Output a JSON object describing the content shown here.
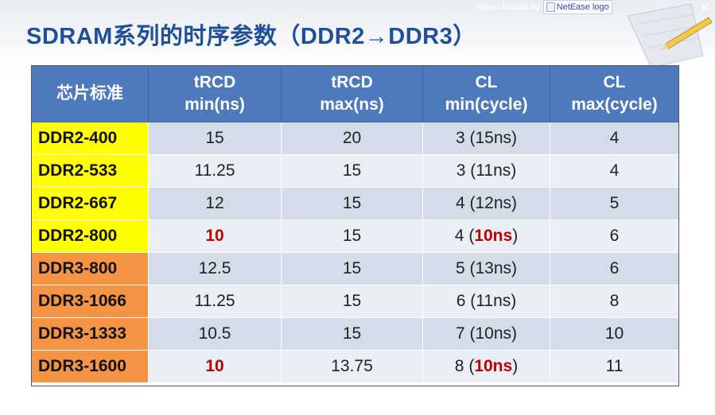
{
  "title": "SDRAM系列的时序参数（DDR2→DDR3）",
  "watermark": {
    "text": "Video hosted by",
    "logo_alt": "NetEase logo"
  },
  "colors": {
    "header_bg": "#4f79bd",
    "ddr2_bg": "#ffff00",
    "ddr3_bg": "#f59445",
    "highlight": "#c00000",
    "title": "#1f4e9a"
  },
  "table": {
    "headers": [
      {
        "line1": "芯片标准",
        "line2": ""
      },
      {
        "line1": "tRCD",
        "line2": "min(ns)"
      },
      {
        "line1": "tRCD",
        "line2": "max(ns)"
      },
      {
        "line1": "CL",
        "line2": "min(cycle)"
      },
      {
        "line1": "CL",
        "line2": "max(cycle)"
      }
    ],
    "rows": [
      {
        "std": "DDR2-400",
        "trcd_min": "15",
        "trcd_min_hl": false,
        "trcd_max": "20",
        "cl_min_cycles": "3",
        "cl_min_ns": "15ns",
        "cl_min_hl": false,
        "cl_max": "4"
      },
      {
        "std": "DDR2-533",
        "trcd_min": "11.25",
        "trcd_min_hl": false,
        "trcd_max": "15",
        "cl_min_cycles": "3",
        "cl_min_ns": "11ns",
        "cl_min_hl": false,
        "cl_max": "4"
      },
      {
        "std": "DDR2-667",
        "trcd_min": "12",
        "trcd_min_hl": false,
        "trcd_max": "15",
        "cl_min_cycles": "4",
        "cl_min_ns": "12ns",
        "cl_min_hl": false,
        "cl_max": "5"
      },
      {
        "std": "DDR2-800",
        "trcd_min": "10",
        "trcd_min_hl": true,
        "trcd_max": "15",
        "cl_min_cycles": "4",
        "cl_min_ns": "10ns",
        "cl_min_hl": true,
        "cl_max": "6"
      },
      {
        "std": "DDR3-800",
        "trcd_min": "12.5",
        "trcd_min_hl": false,
        "trcd_max": "15",
        "cl_min_cycles": "5",
        "cl_min_ns": "13ns",
        "cl_min_hl": false,
        "cl_max": "6"
      },
      {
        "std": "DDR3-1066",
        "trcd_min": "11.25",
        "trcd_min_hl": false,
        "trcd_max": "15",
        "cl_min_cycles": "6",
        "cl_min_ns": "11ns",
        "cl_min_hl": false,
        "cl_max": "8"
      },
      {
        "std": "DDR3-1333",
        "trcd_min": "10.5",
        "trcd_min_hl": false,
        "trcd_max": "15",
        "cl_min_cycles": "7",
        "cl_min_ns": "10ns",
        "cl_min_hl": false,
        "cl_max": "10"
      },
      {
        "std": "DDR3-1600",
        "trcd_min": "10",
        "trcd_min_hl": true,
        "trcd_max": "13.75",
        "cl_min_cycles": "8",
        "cl_min_ns": "10ns",
        "cl_min_hl": true,
        "cl_max": "11"
      }
    ]
  }
}
